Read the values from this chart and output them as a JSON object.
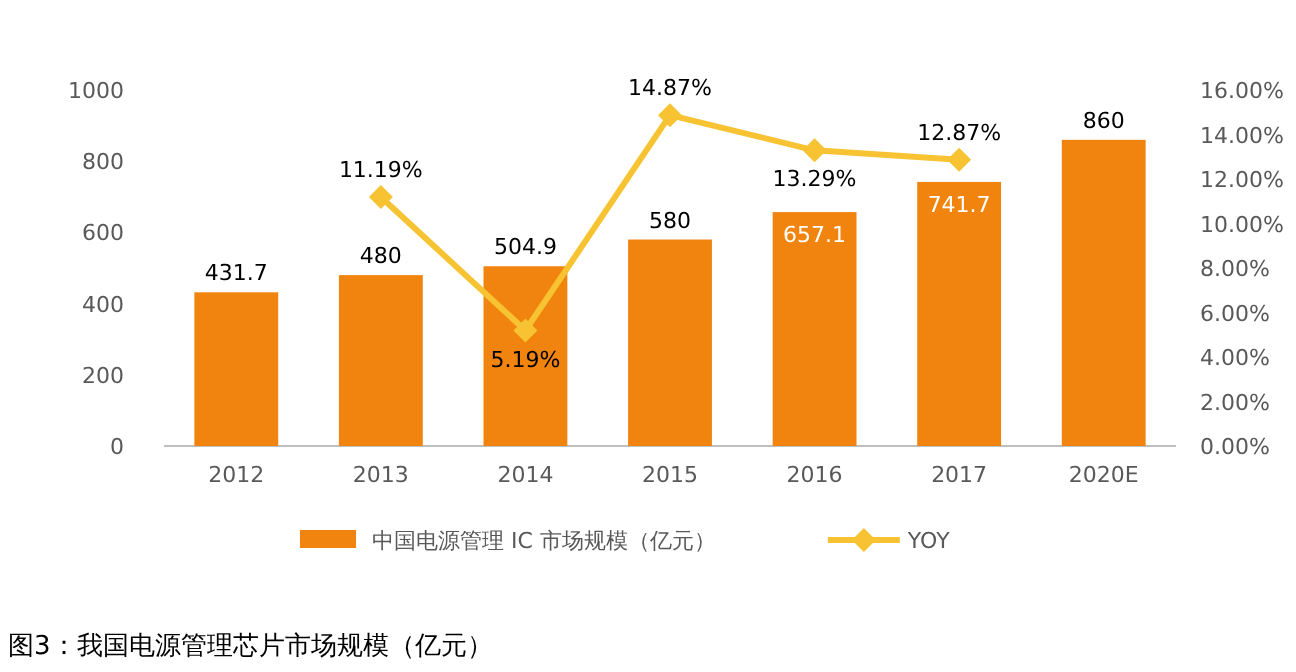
{
  "chart_data": {
    "type": "bar",
    "categories": [
      "2012",
      "2013",
      "2014",
      "2015",
      "2016",
      "2017",
      "2020E"
    ],
    "series": [
      {
        "name": "中国电源管理 IC 市场规模（亿元）",
        "color": "#f0840e",
        "values": [
          431.7,
          480,
          504.9,
          580,
          657.1,
          741.7,
          860
        ],
        "value_labels": [
          "431.7",
          "480",
          "504.9",
          "580",
          "657.1",
          "741.7",
          "860"
        ]
      },
      {
        "name": "YOY",
        "type": "line",
        "axis": "y2",
        "color": "#f7c332",
        "marker": "diamond",
        "values": [
          null,
          11.19,
          5.19,
          14.87,
          13.29,
          12.87,
          null
        ],
        "value_labels": [
          null,
          "11.19%",
          "5.19%",
          "14.87%",
          "13.29%",
          "12.87%",
          null
        ]
      }
    ],
    "ylim": [
      0,
      1000
    ],
    "yticks": [
      0,
      200,
      400,
      600,
      800,
      1000
    ],
    "y2lim": [
      0,
      16
    ],
    "y2ticks": [
      {
        "value": 0,
        "label": "0.00%"
      },
      {
        "value": 2,
        "label": "2.00%"
      },
      {
        "value": 4,
        "label": "4.00%"
      },
      {
        "value": 6,
        "label": "6.00%"
      },
      {
        "value": 8,
        "label": "8.00%"
      },
      {
        "value": 10,
        "label": "10.00%"
      },
      {
        "value": 12,
        "label": "12.00%"
      },
      {
        "value": 14,
        "label": "14.00%"
      },
      {
        "value": 16,
        "label": "16.00%"
      }
    ],
    "legend": "bottom",
    "grid": false,
    "annotations": [
      "图3：我国电源管理芯片市场规模（亿元）"
    ]
  }
}
